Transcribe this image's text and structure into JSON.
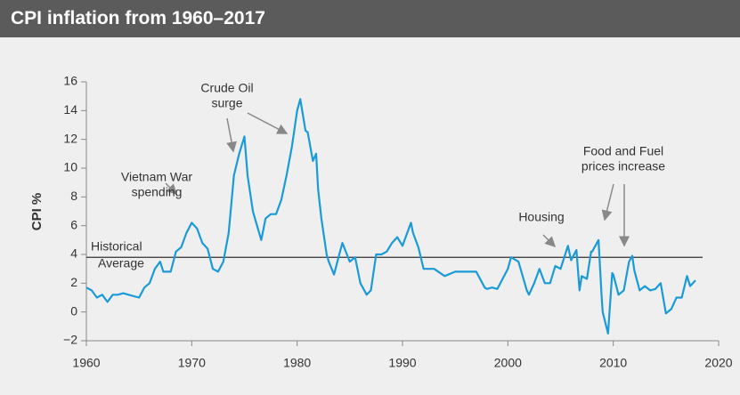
{
  "chart_data": {
    "type": "line",
    "title": "CPI inflation from 1960–2017",
    "y_label": "CPI %",
    "x": [
      1960,
      1960.5,
      1961,
      1961.5,
      1962,
      1962.5,
      1963,
      1963.5,
      1964,
      1965,
      1965.5,
      1966,
      1966.5,
      1967,
      1967.3,
      1968,
      1968.5,
      1969,
      1969.5,
      1970,
      1970.5,
      1971,
      1971.5,
      1972,
      1972.5,
      1973,
      1973.5,
      1974,
      1974.5,
      1975,
      1975.3,
      1975.8,
      1976,
      1976.6,
      1977,
      1977.5,
      1978,
      1978.5,
      1979,
      1979.5,
      1980,
      1980.3,
      1980.8,
      1981,
      1981.5,
      1981.8,
      1982,
      1982.3,
      1982.8,
      1983,
      1983.5,
      1984,
      1984.3,
      1985,
      1985.5,
      1986,
      1986.6,
      1987,
      1987.5,
      1988,
      1988.5,
      1989,
      1989.5,
      1990,
      1990.8,
      1991,
      1991.5,
      1992,
      1993,
      1994,
      1995,
      1996,
      1997,
      1997.8,
      1998,
      1998.5,
      1999,
      1999.5,
      2000,
      2000.3,
      2001,
      2001.8,
      2002,
      2002.5,
      2003,
      2003.5,
      2004,
      2004.5,
      2005,
      2005.7,
      2006,
      2006.5,
      2006.8,
      2007,
      2007.5,
      2007.9,
      2008,
      2008.6,
      2008.9,
      2009,
      2009.5,
      2009.9,
      2010,
      2010.5,
      2011,
      2011.5,
      2011.8,
      2012,
      2012.5,
      2013,
      2013.5,
      2014,
      2014.5,
      2015,
      2015.5,
      2016,
      2016.5,
      2017,
      2017.3,
      2017.8
    ],
    "series": [
      {
        "name": "CPI",
        "color": "#1a9ad6",
        "values": [
          1.7,
          1.5,
          1.0,
          1.2,
          0.7,
          1.2,
          1.2,
          1.3,
          1.2,
          1.0,
          1.7,
          2.0,
          3.0,
          3.5,
          2.8,
          2.8,
          4.2,
          4.5,
          5.5,
          6.2,
          5.8,
          4.8,
          4.4,
          3.0,
          2.8,
          3.5,
          5.5,
          9.5,
          11.0,
          12.2,
          9.5,
          7.0,
          6.5,
          5.0,
          6.5,
          6.8,
          6.8,
          7.8,
          9.5,
          11.5,
          14.0,
          14.8,
          12.6,
          12.5,
          10.5,
          11.0,
          8.5,
          6.5,
          4.0,
          3.5,
          2.6,
          4.0,
          4.8,
          3.5,
          3.8,
          2.0,
          1.2,
          1.5,
          4.0,
          4.0,
          4.2,
          4.8,
          5.2,
          4.6,
          6.2,
          5.5,
          4.5,
          3.0,
          3.0,
          2.5,
          2.8,
          2.8,
          2.8,
          1.7,
          1.6,
          1.7,
          1.6,
          2.3,
          3.0,
          3.8,
          3.5,
          1.5,
          1.2,
          2.0,
          3.0,
          2.0,
          2.0,
          3.2,
          3.0,
          4.6,
          3.6,
          4.3,
          1.5,
          2.5,
          2.3,
          4.2,
          4.2,
          5.0,
          1.0,
          0.0,
          -1.5,
          2.7,
          2.6,
          1.2,
          1.5,
          3.5,
          3.9,
          2.9,
          1.5,
          1.8,
          1.5,
          1.6,
          2.0,
          -0.1,
          0.2,
          1.0,
          1.0,
          2.5,
          1.8,
          2.2
        ]
      }
    ],
    "reference_line": {
      "value": 3.8,
      "label": [
        "Historical",
        "Average"
      ],
      "color": "#333333"
    },
    "annotations": [
      {
        "lines": [
          "Vietnam War",
          "spending"
        ]
      },
      {
        "lines": [
          "Crude Oil",
          "surge"
        ]
      },
      {
        "lines": [
          "Housing"
        ]
      },
      {
        "lines": [
          "Food and Fuel",
          "prices increase"
        ]
      }
    ],
    "xlim": [
      1960,
      2020
    ],
    "xticks": [
      1960,
      1970,
      1980,
      1990,
      2000,
      2010,
      2020
    ],
    "ylim": [
      -2,
      16
    ],
    "yticks": [
      {
        "value": -2,
        "label": "−2"
      },
      0,
      2,
      4,
      6,
      8,
      10,
      12,
      14,
      16
    ]
  }
}
